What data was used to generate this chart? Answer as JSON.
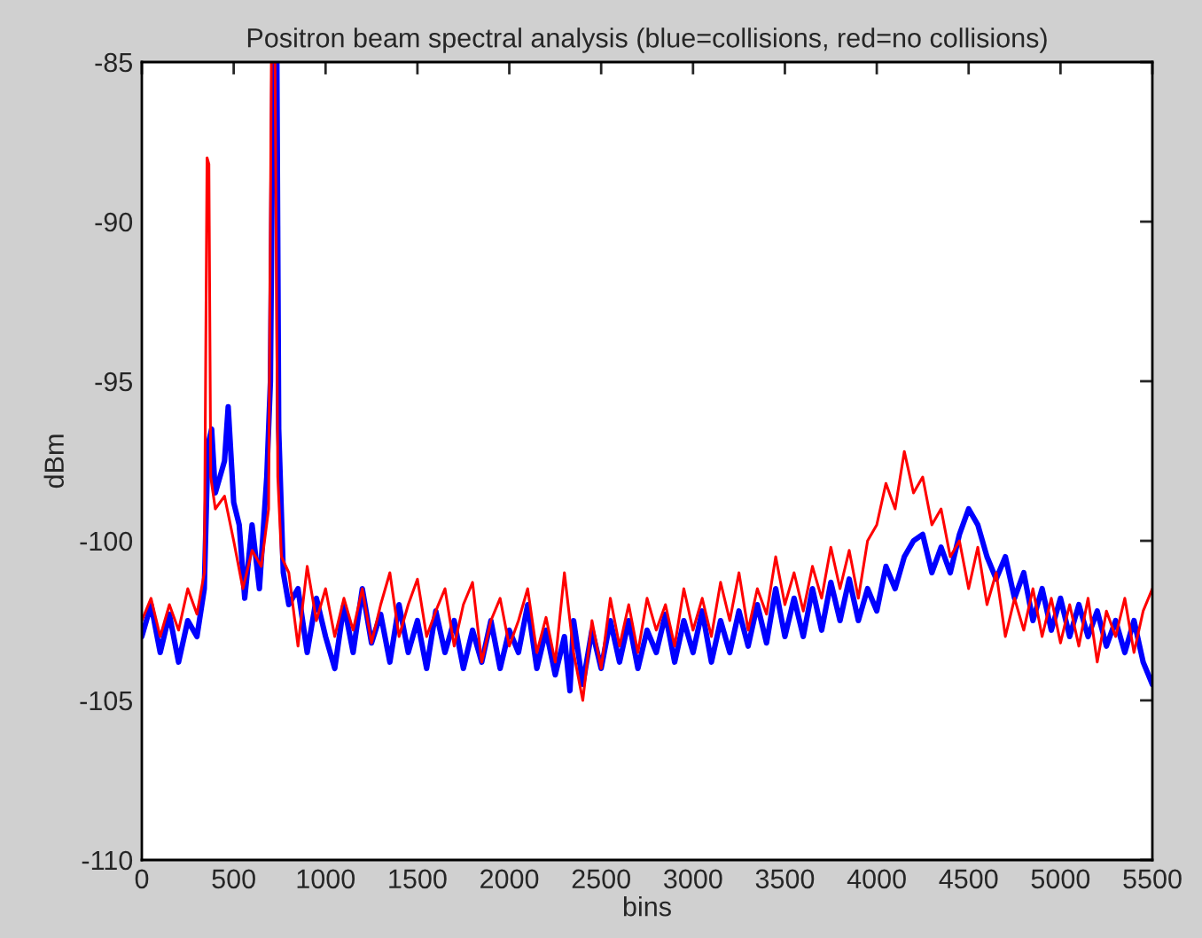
{
  "chart_data": {
    "type": "line",
    "title": "Positron beam spectral analysis (blue=collisions, red=no collisions)",
    "xlabel": "bins",
    "ylabel": "dBm",
    "xlim": [
      0,
      5500
    ],
    "ylim": [
      -110,
      -85
    ],
    "xticks": [
      0,
      500,
      1000,
      1500,
      2000,
      2500,
      3000,
      3500,
      4000,
      4500,
      5000,
      5500
    ],
    "yticks": [
      -110,
      -105,
      -100,
      -95,
      -90,
      -85
    ],
    "grid": false,
    "legend": false,
    "marker": "none",
    "line_style": "solid",
    "series": [
      {
        "color": "#0000ff",
        "x": [
          0,
          50,
          100,
          150,
          200,
          250,
          300,
          340,
          360,
          380,
          400,
          450,
          470,
          500,
          530,
          560,
          600,
          640,
          680,
          700,
          715,
          735,
          745,
          770,
          800,
          850,
          900,
          950,
          1000,
          1050,
          1100,
          1150,
          1200,
          1250,
          1300,
          1350,
          1400,
          1450,
          1500,
          1550,
          1600,
          1650,
          1700,
          1750,
          1800,
          1850,
          1900,
          1950,
          2000,
          2050,
          2100,
          2150,
          2200,
          2250,
          2300,
          2330,
          2350,
          2400,
          2450,
          2500,
          2550,
          2600,
          2650,
          2700,
          2750,
          2800,
          2850,
          2900,
          2950,
          3000,
          3050,
          3100,
          3150,
          3200,
          3250,
          3300,
          3350,
          3400,
          3450,
          3500,
          3550,
          3600,
          3650,
          3700,
          3750,
          3800,
          3850,
          3900,
          3950,
          4000,
          4050,
          4100,
          4150,
          4200,
          4250,
          4300,
          4350,
          4400,
          4450,
          4500,
          4550,
          4600,
          4650,
          4700,
          4750,
          4800,
          4850,
          4900,
          4950,
          5000,
          5050,
          5100,
          5150,
          5200,
          5250,
          5300,
          5350,
          5400,
          5450,
          5500
        ],
        "values": [
          -103,
          -102,
          -103.5,
          -102.3,
          -103.8,
          -102.5,
          -103,
          -101.5,
          -97,
          -96.5,
          -98.5,
          -97.5,
          -95.8,
          -98.8,
          -99.5,
          -101.8,
          -99.5,
          -101.5,
          -98,
          -95,
          -85,
          -85,
          -96.5,
          -101,
          -102,
          -101.5,
          -103.5,
          -101.8,
          -103,
          -104,
          -102,
          -103.5,
          -101.5,
          -103.2,
          -102.3,
          -103.8,
          -102,
          -103.5,
          -102.5,
          -104,
          -102.2,
          -103.5,
          -102.5,
          -104,
          -102.8,
          -103.8,
          -102.5,
          -104,
          -102.8,
          -103.5,
          -102,
          -104,
          -102.8,
          -104.2,
          -103,
          -104.7,
          -102.5,
          -104.5,
          -102.8,
          -104,
          -102.5,
          -103.8,
          -102.5,
          -104,
          -102.8,
          -103.5,
          -102.3,
          -103.8,
          -102.5,
          -103.5,
          -102.2,
          -103.8,
          -102.5,
          -103.5,
          -102.2,
          -103.3,
          -102,
          -103.2,
          -101.5,
          -103,
          -101.8,
          -103,
          -101.5,
          -102.8,
          -101.3,
          -102.5,
          -101.2,
          -102.5,
          -101.5,
          -102.2,
          -100.8,
          -101.5,
          -100.5,
          -100,
          -99.8,
          -101,
          -100.2,
          -101,
          -99.8,
          -99,
          -99.5,
          -100.5,
          -101.2,
          -100.5,
          -101.8,
          -101,
          -102.5,
          -101.5,
          -102.8,
          -101.8,
          -103,
          -102,
          -103,
          -102.2,
          -103.3,
          -102.5,
          -103.5,
          -102.5,
          -103.8,
          -104.5
        ]
      },
      {
        "color": "#ff0000",
        "x": [
          0,
          50,
          100,
          150,
          200,
          250,
          300,
          340,
          355,
          365,
          375,
          400,
          450,
          500,
          550,
          600,
          650,
          690,
          705,
          725,
          740,
          760,
          800,
          850,
          900,
          950,
          1000,
          1050,
          1100,
          1150,
          1200,
          1250,
          1300,
          1350,
          1400,
          1450,
          1500,
          1550,
          1600,
          1650,
          1700,
          1750,
          1800,
          1850,
          1900,
          1950,
          2000,
          2050,
          2100,
          2150,
          2200,
          2250,
          2300,
          2350,
          2400,
          2450,
          2500,
          2550,
          2600,
          2650,
          2700,
          2750,
          2800,
          2850,
          2900,
          2950,
          3000,
          3050,
          3100,
          3150,
          3200,
          3250,
          3300,
          3350,
          3400,
          3450,
          3500,
          3550,
          3600,
          3650,
          3700,
          3750,
          3800,
          3850,
          3900,
          3950,
          4000,
          4050,
          4100,
          4150,
          4200,
          4250,
          4300,
          4350,
          4400,
          4450,
          4500,
          4550,
          4600,
          4650,
          4700,
          4750,
          4800,
          4850,
          4900,
          4950,
          5000,
          5050,
          5100,
          5150,
          5200,
          5250,
          5300,
          5350,
          5400,
          5450,
          5500
        ],
        "values": [
          -102.5,
          -101.8,
          -103,
          -102,
          -102.8,
          -101.5,
          -102.3,
          -101,
          -88,
          -88.2,
          -98,
          -99,
          -98.6,
          -100,
          -101.5,
          -100.3,
          -100.8,
          -99,
          -85,
          -85,
          -98,
          -100.5,
          -101,
          -103.3,
          -100.8,
          -102.5,
          -101.5,
          -103,
          -101.8,
          -102.8,
          -101.5,
          -103.2,
          -102,
          -101,
          -103,
          -102,
          -101.2,
          -103,
          -102.2,
          -101.5,
          -103.3,
          -102,
          -101.3,
          -103.8,
          -102.5,
          -101.8,
          -103.3,
          -102.5,
          -101.5,
          -103.5,
          -102.4,
          -103.8,
          -101,
          -103.5,
          -105,
          -102.5,
          -104,
          -101.8,
          -103.3,
          -102,
          -103.5,
          -101.8,
          -102.8,
          -102,
          -103.3,
          -101.5,
          -102.8,
          -101.8,
          -103,
          -101.3,
          -102.5,
          -101,
          -102.8,
          -101.5,
          -102.3,
          -100.5,
          -102,
          -101,
          -102.2,
          -100.8,
          -101.8,
          -100.2,
          -101.5,
          -100.3,
          -101.8,
          -100,
          -99.5,
          -98.2,
          -99,
          -97.2,
          -98.5,
          -98,
          -99.5,
          -99,
          -100.5,
          -100,
          -101.5,
          -100.2,
          -102,
          -101,
          -103,
          -101.8,
          -102.8,
          -101.5,
          -103,
          -101.8,
          -103.2,
          -102,
          -103.3,
          -101.8,
          -103.8,
          -102.2,
          -103,
          -101.8,
          -103.5,
          -102.2,
          -101.5
        ]
      }
    ]
  }
}
